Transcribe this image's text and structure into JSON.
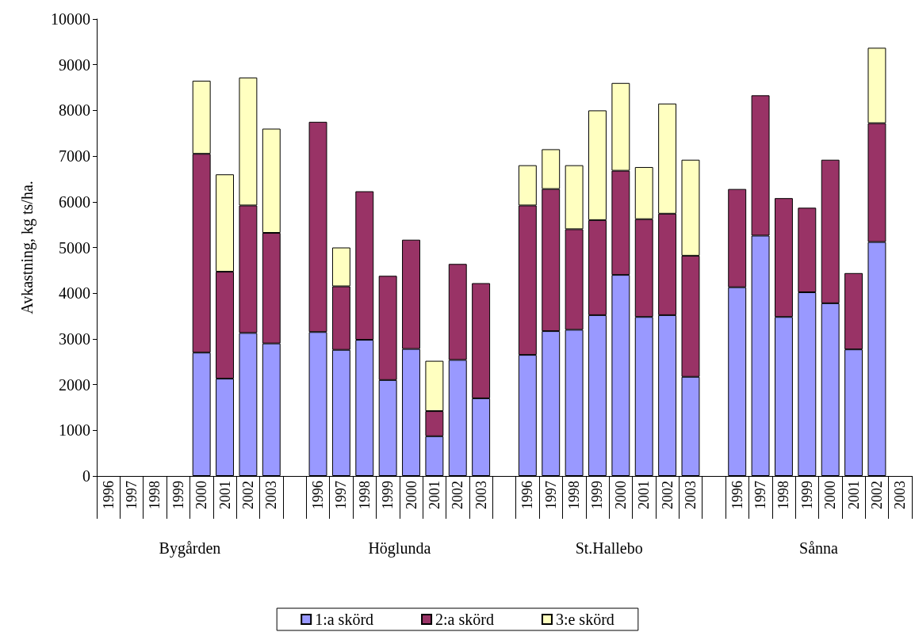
{
  "chart_data": {
    "type": "bar",
    "stacked": true,
    "ylabel": "Avkastning, kg ts/ha.",
    "categories": [
      "1996",
      "1997",
      "1998",
      "1999",
      "2000",
      "2001",
      "2002",
      "2003",
      null,
      "1996",
      "1997",
      "1998",
      "1999",
      "2000",
      "2001",
      "2002",
      "2003",
      null,
      "1996",
      "1997",
      "1998",
      "1999",
      "2000",
      "2001",
      "2002",
      "2003",
      null,
      "1996",
      "1997",
      "1998",
      "1999",
      "2000",
      "2001",
      "2002",
      "2003"
    ],
    "annotations": [
      "Bygården",
      "Höglunda",
      "St.Hallebo",
      "Sånna"
    ],
    "series": [
      {
        "name": "1:a skörd",
        "color": "#9999ff",
        "values": [
          null,
          null,
          null,
          null,
          2700,
          2130,
          3130,
          2900,
          null,
          3150,
          2760,
          2980,
          2100,
          2780,
          870,
          2540,
          1700,
          null,
          2650,
          3170,
          3200,
          3520,
          4400,
          3480,
          3520,
          2170,
          null,
          4130,
          5260,
          3480,
          4020,
          3780,
          2770,
          5120,
          null
        ]
      },
      {
        "name": "2:a skörd",
        "color": "#993366",
        "values": [
          null,
          null,
          null,
          null,
          4350,
          2340,
          2790,
          2420,
          null,
          4600,
          1390,
          3250,
          2280,
          2390,
          550,
          2100,
          2520,
          null,
          3270,
          3110,
          2200,
          2080,
          2280,
          2140,
          2220,
          2650,
          null,
          2150,
          3070,
          2600,
          1850,
          3140,
          1670,
          2600,
          null
        ]
      },
      {
        "name": "3:e skörd",
        "color": "#ffffc0",
        "values": [
          null,
          null,
          null,
          null,
          1600,
          2130,
          2800,
          2280,
          null,
          null,
          850,
          null,
          null,
          null,
          1100,
          null,
          null,
          null,
          880,
          870,
          1400,
          2400,
          1920,
          1140,
          2410,
          2100,
          null,
          null,
          null,
          null,
          null,
          null,
          null,
          1650,
          null
        ]
      }
    ],
    "ylim": [
      0,
      10000
    ],
    "yticks": [
      0,
      1000,
      2000,
      3000,
      4000,
      5000,
      6000,
      7000,
      8000,
      9000,
      10000
    ],
    "legend": "bottom",
    "grid": false
  }
}
